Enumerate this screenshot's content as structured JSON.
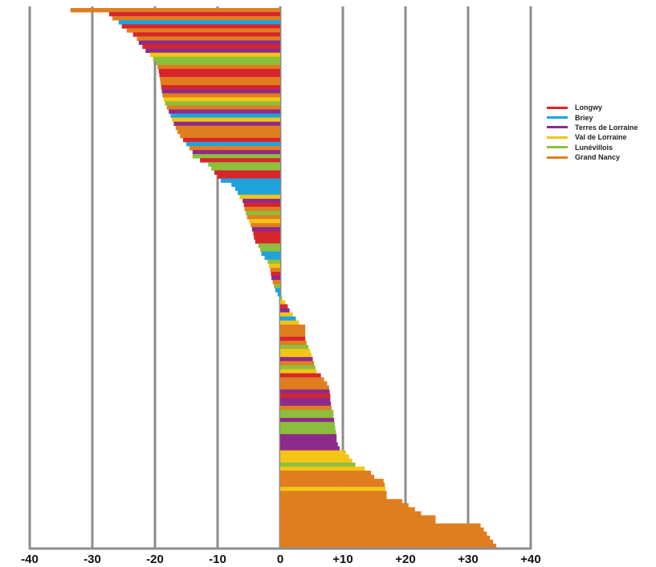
{
  "chart_data": {
    "type": "bar",
    "orientation": "horizontal",
    "title": "",
    "xlabel": "",
    "ylabel": "",
    "xlim": [
      -40,
      40
    ],
    "grid": true,
    "legend_position": "right",
    "ticks": [
      {
        "value": -40,
        "label": "-40"
      },
      {
        "value": -30,
        "label": "-30"
      },
      {
        "value": -20,
        "label": "-20"
      },
      {
        "value": -10,
        "label": "-10"
      },
      {
        "value": 0,
        "label": "0"
      },
      {
        "value": 10,
        "label": "+10"
      },
      {
        "value": 20,
        "label": "+20"
      },
      {
        "value": 30,
        "label": "+30"
      },
      {
        "value": 40,
        "label": "+40"
      }
    ],
    "series": [
      {
        "name": "Longwy",
        "color": "#d7262b"
      },
      {
        "name": "Briey",
        "color": "#1fa3dd"
      },
      {
        "name": "Terres de Lorraine",
        "color": "#8e2a8a"
      },
      {
        "name": "Val de Lorraine",
        "color": "#f2c515"
      },
      {
        "name": "Lunévillois",
        "color": "#8cbf3c"
      },
      {
        "name": "Grand Nancy",
        "color": "#e07e1f"
      }
    ],
    "bars": [
      {
        "value": -33.5,
        "series": "Grand Nancy"
      },
      {
        "value": -27.3,
        "series": "Longwy"
      },
      {
        "value": -26.8,
        "series": "Grand Nancy"
      },
      {
        "value": -25.8,
        "series": "Briey"
      },
      {
        "value": -25.3,
        "series": "Longwy"
      },
      {
        "value": -24.5,
        "series": "Grand Nancy"
      },
      {
        "value": -23.5,
        "series": "Longwy"
      },
      {
        "value": -22.9,
        "series": "Grand Nancy"
      },
      {
        "value": -22.6,
        "series": "Terres de Lorraine"
      },
      {
        "value": -22.0,
        "series": "Longwy"
      },
      {
        "value": -21.5,
        "series": "Terres de Lorraine"
      },
      {
        "value": -20.8,
        "series": "Val de Lorraine"
      },
      {
        "value": -20.3,
        "series": "Lunévillois"
      },
      {
        "value": -19.8,
        "series": "Lunévillois"
      },
      {
        "value": -19.6,
        "series": "Grand Nancy"
      },
      {
        "value": -19.4,
        "series": "Longwy"
      },
      {
        "value": -19.3,
        "series": "Longwy"
      },
      {
        "value": -19.2,
        "series": "Grand Nancy"
      },
      {
        "value": -19.1,
        "series": "Grand Nancy"
      },
      {
        "value": -19.0,
        "series": "Longwy"
      },
      {
        "value": -18.9,
        "series": "Terres de Lorraine"
      },
      {
        "value": -18.8,
        "series": "Grand Nancy"
      },
      {
        "value": -18.6,
        "series": "Val de Lorraine"
      },
      {
        "value": -18.4,
        "series": "Lunévillois"
      },
      {
        "value": -18.1,
        "series": "Grand Nancy"
      },
      {
        "value": -17.8,
        "series": "Terres de Lorraine"
      },
      {
        "value": -17.5,
        "series": "Briey"
      },
      {
        "value": -17.3,
        "series": "Val de Lorraine"
      },
      {
        "value": -17.0,
        "series": "Terres de Lorraine"
      },
      {
        "value": -16.7,
        "series": "Grand Nancy"
      },
      {
        "value": -16.4,
        "series": "Grand Nancy"
      },
      {
        "value": -16.0,
        "series": "Grand Nancy"
      },
      {
        "value": -15.5,
        "series": "Longwy"
      },
      {
        "value": -15.0,
        "series": "Briey"
      },
      {
        "value": -14.5,
        "series": "Grand Nancy"
      },
      {
        "value": -14.0,
        "series": "Terres de Lorraine"
      },
      {
        "value": -14.0,
        "series": "Lunévillois"
      },
      {
        "value": -12.8,
        "series": "Longwy"
      },
      {
        "value": -11.5,
        "series": "Lunévillois"
      },
      {
        "value": -11.0,
        "series": "Lunévillois"
      },
      {
        "value": -10.5,
        "series": "Longwy"
      },
      {
        "value": -10.0,
        "series": "Longwy"
      },
      {
        "value": -9.5,
        "series": "Briey"
      },
      {
        "value": -7.8,
        "series": "Briey"
      },
      {
        "value": -7.2,
        "series": "Briey"
      },
      {
        "value": -6.8,
        "series": "Briey"
      },
      {
        "value": -6.5,
        "series": "Val de Lorraine"
      },
      {
        "value": -6.0,
        "series": "Terres de Lorraine"
      },
      {
        "value": -5.8,
        "series": "Longwy"
      },
      {
        "value": -5.7,
        "series": "Grand Nancy"
      },
      {
        "value": -5.5,
        "series": "Lunévillois"
      },
      {
        "value": -5.3,
        "series": "Grand Nancy"
      },
      {
        "value": -5.0,
        "series": "Val de Lorraine"
      },
      {
        "value": -4.7,
        "series": "Grand Nancy"
      },
      {
        "value": -4.5,
        "series": "Terres de Lorraine"
      },
      {
        "value": -4.3,
        "series": "Longwy"
      },
      {
        "value": -4.2,
        "series": "Longwy"
      },
      {
        "value": -4.0,
        "series": "Longwy"
      },
      {
        "value": -3.5,
        "series": "Lunévillois"
      },
      {
        "value": -3.2,
        "series": "Lunévillois"
      },
      {
        "value": -3.0,
        "series": "Briey"
      },
      {
        "value": -2.5,
        "series": "Briey"
      },
      {
        "value": -2.0,
        "series": "Lunévillois"
      },
      {
        "value": -1.8,
        "series": "Val de Lorraine"
      },
      {
        "value": -1.6,
        "series": "Grand Nancy"
      },
      {
        "value": -1.5,
        "series": "Longwy"
      },
      {
        "value": -1.4,
        "series": "Terres de Lorraine"
      },
      {
        "value": -1.2,
        "series": "Grand Nancy"
      },
      {
        "value": -1.0,
        "series": "Lunévillois"
      },
      {
        "value": -0.8,
        "series": "Briey"
      },
      {
        "value": -0.4,
        "series": "Briey"
      },
      {
        "value": 0.3,
        "series": "Lunévillois"
      },
      {
        "value": 0.8,
        "series": "Val de Lorraine"
      },
      {
        "value": 1.2,
        "series": "Longwy"
      },
      {
        "value": 1.5,
        "series": "Terres de Lorraine"
      },
      {
        "value": 2.0,
        "series": "Val de Lorraine"
      },
      {
        "value": 2.5,
        "series": "Briey"
      },
      {
        "value": 3.0,
        "series": "Val de Lorraine"
      },
      {
        "value": 4.0,
        "series": "Grand Nancy"
      },
      {
        "value": 4.0,
        "series": "Grand Nancy"
      },
      {
        "value": 4.0,
        "series": "Grand Nancy"
      },
      {
        "value": 4.0,
        "series": "Longwy"
      },
      {
        "value": 4.2,
        "series": "Grand Nancy"
      },
      {
        "value": 4.5,
        "series": "Lunévillois"
      },
      {
        "value": 4.8,
        "series": "Val de Lorraine"
      },
      {
        "value": 5.0,
        "series": "Val de Lorraine"
      },
      {
        "value": 5.2,
        "series": "Terres de Lorraine"
      },
      {
        "value": 5.4,
        "series": "Grand Nancy"
      },
      {
        "value": 5.6,
        "series": "Lunévillois"
      },
      {
        "value": 5.8,
        "series": "Val de Lorraine"
      },
      {
        "value": 6.5,
        "series": "Longwy"
      },
      {
        "value": 7.0,
        "series": "Grand Nancy"
      },
      {
        "value": 7.5,
        "series": "Grand Nancy"
      },
      {
        "value": 7.8,
        "series": "Grand Nancy"
      },
      {
        "value": 7.9,
        "series": "Terres de Lorraine"
      },
      {
        "value": 8.0,
        "series": "Longwy"
      },
      {
        "value": 8.0,
        "series": "Terres de Lorraine"
      },
      {
        "value": 8.1,
        "series": "Terres de Lorraine"
      },
      {
        "value": 8.2,
        "series": "Grand Nancy"
      },
      {
        "value": 8.5,
        "series": "Lunévillois"
      },
      {
        "value": 8.5,
        "series": "Lunévillois"
      },
      {
        "value": 8.6,
        "series": "Terres de Lorraine"
      },
      {
        "value": 8.7,
        "series": "Lunévillois"
      },
      {
        "value": 8.8,
        "series": "Lunévillois"
      },
      {
        "value": 8.9,
        "series": "Lunévillois"
      },
      {
        "value": 9.0,
        "series": "Terres de Lorraine"
      },
      {
        "value": 9.0,
        "series": "Terres de Lorraine"
      },
      {
        "value": 9.2,
        "series": "Terres de Lorraine"
      },
      {
        "value": 9.5,
        "series": "Terres de Lorraine"
      },
      {
        "value": 10.5,
        "series": "Val de Lorraine"
      },
      {
        "value": 11.0,
        "series": "Val de Lorraine"
      },
      {
        "value": 11.5,
        "series": "Val de Lorraine"
      },
      {
        "value": 12.0,
        "series": "Lunévillois"
      },
      {
        "value": 13.5,
        "series": "Val de Lorraine"
      },
      {
        "value": 14.5,
        "series": "Grand Nancy"
      },
      {
        "value": 15.0,
        "series": "Grand Nancy"
      },
      {
        "value": 16.5,
        "series": "Grand Nancy"
      },
      {
        "value": 16.7,
        "series": "Grand Nancy"
      },
      {
        "value": 16.8,
        "series": "Val de Lorraine"
      },
      {
        "value": 17.0,
        "series": "Grand Nancy"
      },
      {
        "value": 17.0,
        "series": "Grand Nancy"
      },
      {
        "value": 19.5,
        "series": "Grand Nancy"
      },
      {
        "value": 20.5,
        "series": "Grand Nancy"
      },
      {
        "value": 21.5,
        "series": "Grand Nancy"
      },
      {
        "value": 22.5,
        "series": "Grand Nancy"
      },
      {
        "value": 24.8,
        "series": "Grand Nancy"
      },
      {
        "value": 24.8,
        "series": "Grand Nancy"
      },
      {
        "value": 32.0,
        "series": "Grand Nancy"
      },
      {
        "value": 32.5,
        "series": "Grand Nancy"
      },
      {
        "value": 33.0,
        "series": "Grand Nancy"
      },
      {
        "value": 33.5,
        "series": "Grand Nancy"
      },
      {
        "value": 34.0,
        "series": "Grand Nancy"
      },
      {
        "value": 34.5,
        "series": "Grand Nancy"
      }
    ]
  }
}
